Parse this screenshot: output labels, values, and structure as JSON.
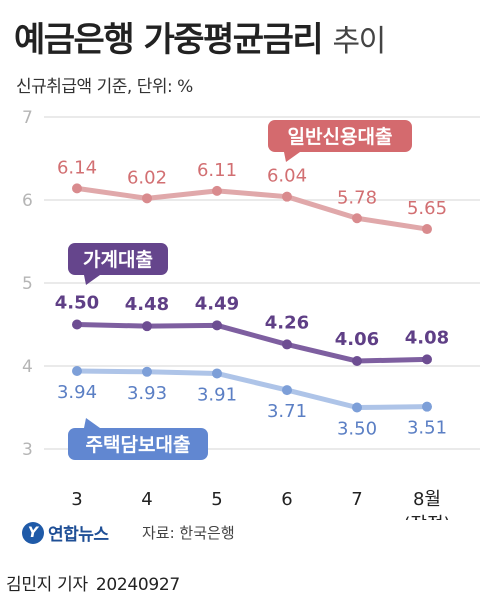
{
  "header": {
    "title": "예금은행 가중평균금리",
    "title_suffix": "추이",
    "subtitle": "신규취급액 기준, 단위: %"
  },
  "footer": {
    "logo_mark": "Y",
    "logo_text": "연합뉴스",
    "source": "자료: 한국은행"
  },
  "credit": {
    "author": "김민지 기자",
    "date": "20240927"
  },
  "chart_data": {
    "type": "line",
    "categories": [
      "3",
      "4",
      "5",
      "6",
      "7",
      "8월"
    ],
    "category_sublabels": [
      "",
      "",
      "",
      "",
      "",
      "(잠정)"
    ],
    "ylim": [
      3,
      7
    ],
    "yticks": [
      3,
      4,
      5,
      6,
      7
    ],
    "grid": true,
    "series": [
      {
        "name": "일반신용대출",
        "values": [
          6.14,
          6.02,
          6.11,
          6.04,
          5.78,
          5.65
        ],
        "value_labels": [
          "6.14",
          "6.02",
          "6.11",
          "6.04",
          "5.78",
          "5.65"
        ],
        "color": "#e0a8aa",
        "marker_color": "#d98b8e",
        "label_color": "#d26f72",
        "tag_color": "#d46a6e",
        "bold_values": false
      },
      {
        "name": "가계대출",
        "values": [
          4.5,
          4.48,
          4.49,
          4.26,
          4.06,
          4.08
        ],
        "value_labels": [
          "4.50",
          "4.48",
          "4.49",
          "4.26",
          "4.06",
          "4.08"
        ],
        "color": "#7e5fa0",
        "marker_color": "#6d4d92",
        "label_color": "#5f3f86",
        "tag_color": "#65458c",
        "bold_values": true
      },
      {
        "name": "주택담보대출",
        "values": [
          3.94,
          3.93,
          3.91,
          3.71,
          3.5,
          3.51
        ],
        "value_labels": [
          "3.94",
          "3.93",
          "3.91",
          "3.71",
          "3.50",
          "3.51"
        ],
        "color": "#aec4e8",
        "marker_color": "#7d9fd8",
        "label_color": "#5b7fc4",
        "tag_color": "#6187d1",
        "bold_values": false
      }
    ]
  }
}
